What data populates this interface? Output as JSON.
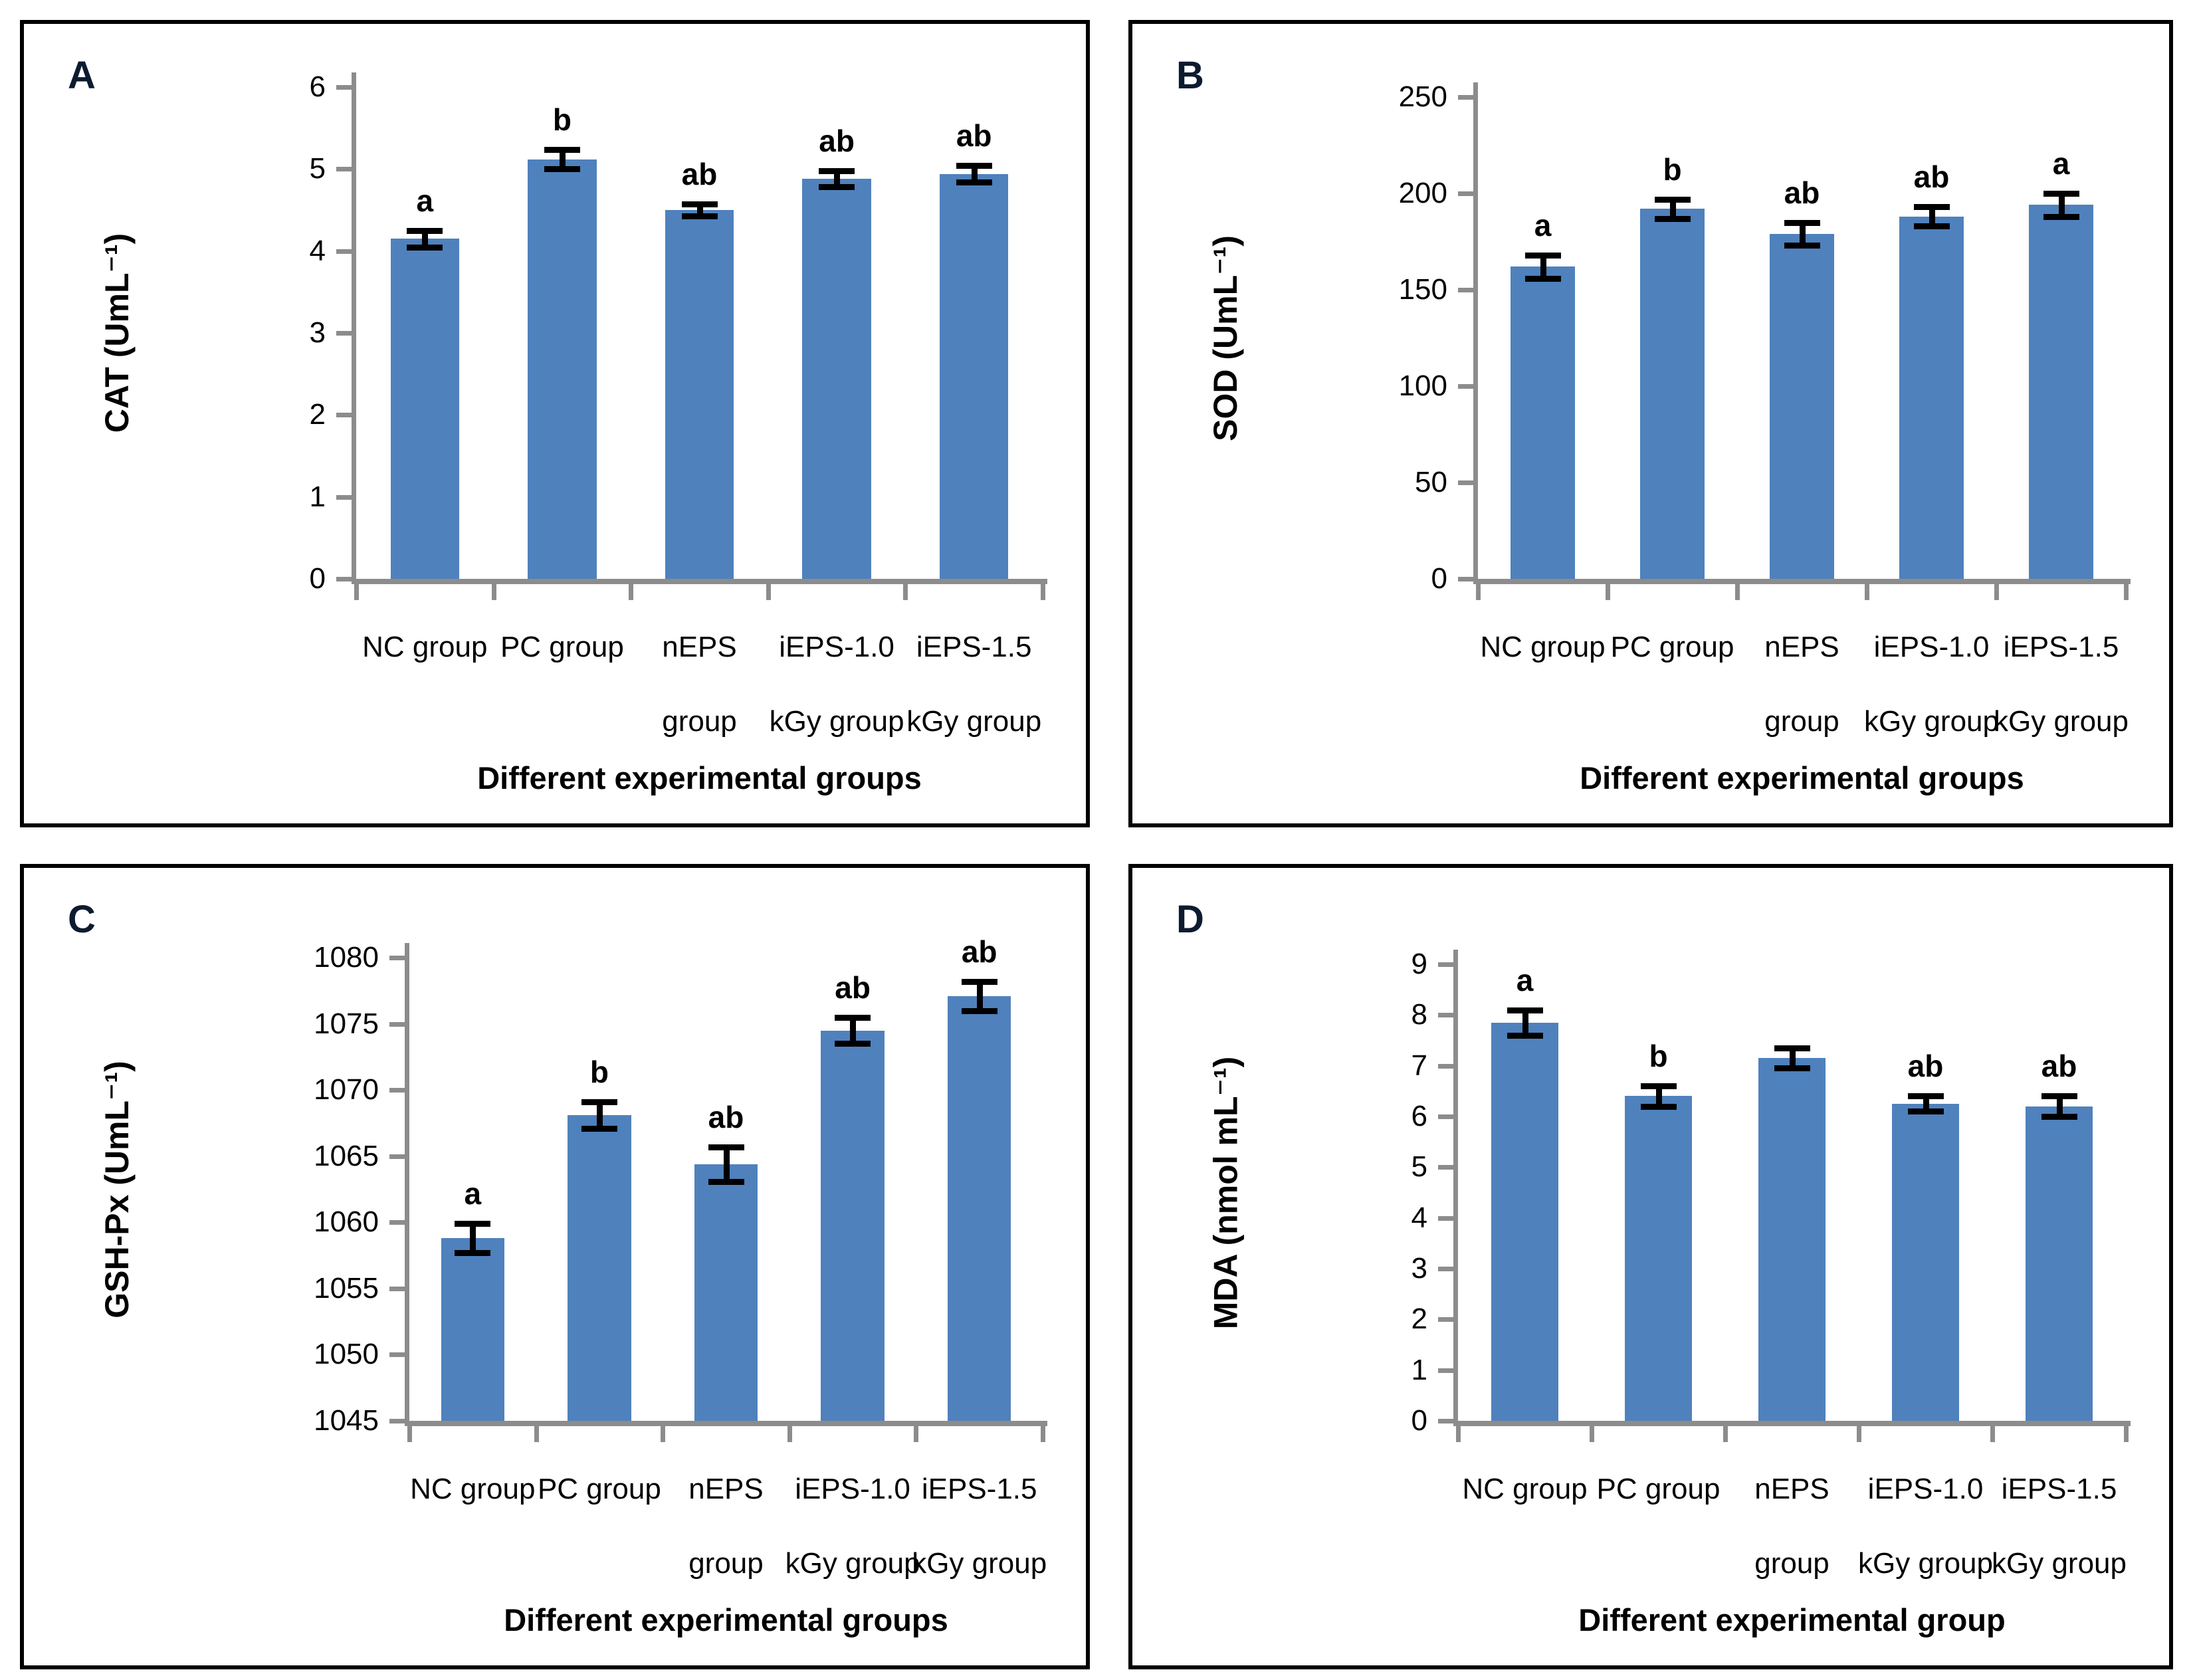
{
  "styles": {
    "bar_color": "#4f81bd",
    "axis_color": "#8c8c8c",
    "error_color": "#000000",
    "sig_color": "#000000",
    "panel_letter_color": "#0d1b30"
  },
  "chart_data": [
    {
      "type": "bar",
      "panel": "A",
      "title": "",
      "ylabel": "CAT (UmL⁻¹)",
      "xlabel": "Different experimental groups",
      "categories": [
        "NC group",
        "PC group",
        "nEPS group",
        "iEPS-1.0 kGy group",
        "iEPS-1.5 kGy group"
      ],
      "category_lines": [
        [
          "NC group"
        ],
        [
          "PC group"
        ],
        [
          "nEPS",
          "group"
        ],
        [
          "iEPS-1.0",
          "kGy group"
        ],
        [
          "iEPS-1.5",
          "kGy group"
        ]
      ],
      "values": [
        4.15,
        5.12,
        4.5,
        4.88,
        4.94
      ],
      "errors": [
        0.1,
        0.12,
        0.07,
        0.1,
        0.1
      ],
      "sig_labels": [
        "a",
        "b",
        "ab",
        "ab",
        "ab"
      ],
      "ylim": [
        0,
        6
      ],
      "ytick_step": 1,
      "grid": false,
      "legend": null
    },
    {
      "type": "bar",
      "panel": "B",
      "title": "",
      "ylabel": "SOD (UmL⁻¹)",
      "xlabel": "Different experimental groups",
      "categories": [
        "NC group",
        "PC group",
        "nEPS group",
        "iEPS-1.0 kGy group",
        "iEPS-1.5 kGy group"
      ],
      "category_lines": [
        [
          "NC group"
        ],
        [
          "PC group"
        ],
        [
          "nEPS",
          "group"
        ],
        [
          "iEPS-1.0",
          "kGy group"
        ],
        [
          "iEPS-1.5",
          "kGy group"
        ]
      ],
      "values": [
        162,
        192,
        179,
        188,
        194
      ],
      "errors": [
        6,
        5,
        6,
        5,
        6
      ],
      "sig_labels": [
        "a",
        "b",
        "ab",
        "ab",
        "a"
      ],
      "ylim": [
        0,
        250
      ],
      "ytick_step": 50,
      "grid": false,
      "legend": null
    },
    {
      "type": "bar",
      "panel": "C",
      "title": "",
      "ylabel": "GSH-Px (UmL⁻¹)",
      "xlabel": "Different experimental groups",
      "categories": [
        "NC group",
        "PC group",
        "nEPS group",
        "iEPS-1.0 kGy group",
        "iEPS-1.5 kGy group"
      ],
      "category_lines": [
        [
          "NC group"
        ],
        [
          "PC group"
        ],
        [
          "nEPS",
          "group"
        ],
        [
          "iEPS-1.0",
          "kGy group"
        ],
        [
          "iEPS-1.5",
          "kGy group"
        ]
      ],
      "values": [
        1058.8,
        1068.1,
        1064.4,
        1074.5,
        1077.1
      ],
      "errors": [
        1.1,
        1.0,
        1.3,
        1.0,
        1.1
      ],
      "sig_labels": [
        "a",
        "b",
        "ab",
        "ab",
        "ab"
      ],
      "ylim": [
        1045,
        1080
      ],
      "ytick_step": 5,
      "grid": false,
      "legend": null
    },
    {
      "type": "bar",
      "panel": "D",
      "title": "",
      "ylabel": "MDA (nmol mL⁻¹)",
      "xlabel": "Different experimental group",
      "categories": [
        "NC group",
        "PC group",
        "nEPS group",
        "iEPS-1.0 kGy group",
        "iEPS-1.5 kGy group"
      ],
      "category_lines": [
        [
          "NC group"
        ],
        [
          "PC group"
        ],
        [
          "nEPS",
          "group"
        ],
        [
          "iEPS-1.0",
          "kGy group"
        ],
        [
          "iEPS-1.5",
          "kGy group"
        ]
      ],
      "values": [
        7.85,
        6.4,
        7.15,
        6.25,
        6.2
      ],
      "errors": [
        0.25,
        0.2,
        0.2,
        0.15,
        0.2
      ],
      "sig_labels": [
        "a",
        "b",
        "",
        "ab",
        "ab"
      ],
      "ylim": [
        0,
        9
      ],
      "ytick_step": 1,
      "grid": false,
      "legend": null
    }
  ]
}
